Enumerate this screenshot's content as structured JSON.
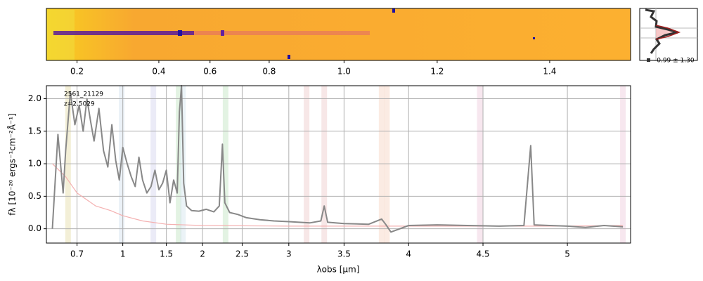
{
  "chart_data": {
    "type": "line",
    "annotations": [
      "2561_21129",
      "z=2.5029"
    ],
    "profile_label": "-0.99 ± 1.30",
    "xlabel": "λobs [μm]",
    "ylabel": "fλ [10⁻²⁰ ergs⁻¹cm⁻²Å⁻¹]",
    "xlim": [
      0.58,
      5.34
    ],
    "ylim": [
      -0.22,
      2.2
    ],
    "xticks": [
      0.7,
      1.0,
      1.5,
      2.0,
      2.5,
      3.0,
      3.5,
      4.0,
      4.5,
      5.0
    ],
    "yticks": [
      {
        "value": 0,
        "label": "0.0"
      },
      0.5,
      {
        "value": 1,
        "label": "1.0"
      },
      1.5,
      {
        "value": 2,
        "label": "2.0"
      }
    ],
    "top_xticks": [
      0.2,
      0.4,
      0.6,
      0.8,
      {
        "value": 1,
        "label": "1.0"
      },
      1.2,
      1.4
    ],
    "grid": true,
    "bands": [
      0.66,
      0.99,
      1.33,
      1.67,
      1.73,
      2.3,
      3.17,
      3.33,
      3.8,
      3.84,
      4.48,
      5.3
    ],
    "band_colors": [
      "#e8e0b0",
      "#d8e4f0",
      "#d8d8f0",
      "#c8e8c8",
      "#d8e8f0",
      "#c8e8c8",
      "#f0d0d0",
      "#f0d0d0",
      "#f8d8c8",
      "#f8d8c8",
      "#f0d0e0",
      "#f0d0e0"
    ],
    "series": [
      {
        "name": "flux",
        "color": "#888888",
        "x": [
          0.6,
          0.62,
          0.64,
          0.65,
          0.67,
          0.69,
          0.71,
          0.73,
          0.75,
          0.77,
          0.79,
          0.82,
          0.85,
          0.88,
          0.91,
          0.94,
          0.97,
          1.0,
          1.04,
          1.08,
          1.12,
          1.16,
          1.2,
          1.25,
          1.3,
          1.35,
          1.4,
          1.45,
          1.5,
          1.55,
          1.6,
          1.65,
          1.68,
          1.71,
          1.74,
          1.78,
          1.85,
          1.95,
          2.05,
          2.15,
          2.22,
          2.26,
          2.29,
          2.35,
          2.45,
          2.55,
          2.7,
          2.85,
          3.0,
          3.1,
          3.2,
          3.3,
          3.33,
          3.36,
          3.5,
          3.7,
          3.8,
          3.83,
          3.87,
          4.0,
          4.2,
          4.4,
          4.6,
          4.75,
          4.79,
          4.81,
          4.9,
          5.0,
          5.1,
          5.2,
          5.3
        ],
        "values": [
          0.0,
          1.45,
          0.55,
          1.2,
          2.1,
          1.6,
          1.9,
          1.5,
          2.0,
          1.65,
          1.35,
          1.85,
          1.2,
          0.95,
          1.6,
          1.05,
          0.75,
          1.25,
          1.0,
          0.8,
          0.65,
          1.1,
          0.75,
          0.55,
          0.65,
          0.9,
          0.6,
          0.7,
          0.9,
          0.4,
          0.75,
          0.55,
          1.8,
          2.2,
          0.7,
          0.35,
          0.28,
          0.27,
          0.3,
          0.26,
          0.35,
          1.3,
          0.4,
          0.25,
          0.22,
          0.17,
          0.14,
          0.12,
          0.11,
          0.1,
          0.09,
          0.12,
          0.35,
          0.1,
          0.08,
          0.07,
          0.15,
          0.07,
          -0.05,
          0.05,
          0.06,
          0.05,
          0.04,
          0.05,
          1.28,
          0.06,
          0.05,
          0.04,
          0.02,
          0.05,
          0.03
        ]
      },
      {
        "name": "error",
        "color": "#f4b0b0",
        "x": [
          0.6,
          0.65,
          0.7,
          0.8,
          0.9,
          1.0,
          1.2,
          1.5,
          2.0,
          3.0,
          4.0,
          5.0,
          5.3
        ],
        "values": [
          1.0,
          0.8,
          0.55,
          0.35,
          0.28,
          0.2,
          0.12,
          0.07,
          0.05,
          0.04,
          0.04,
          0.04,
          0.05
        ]
      }
    ]
  }
}
